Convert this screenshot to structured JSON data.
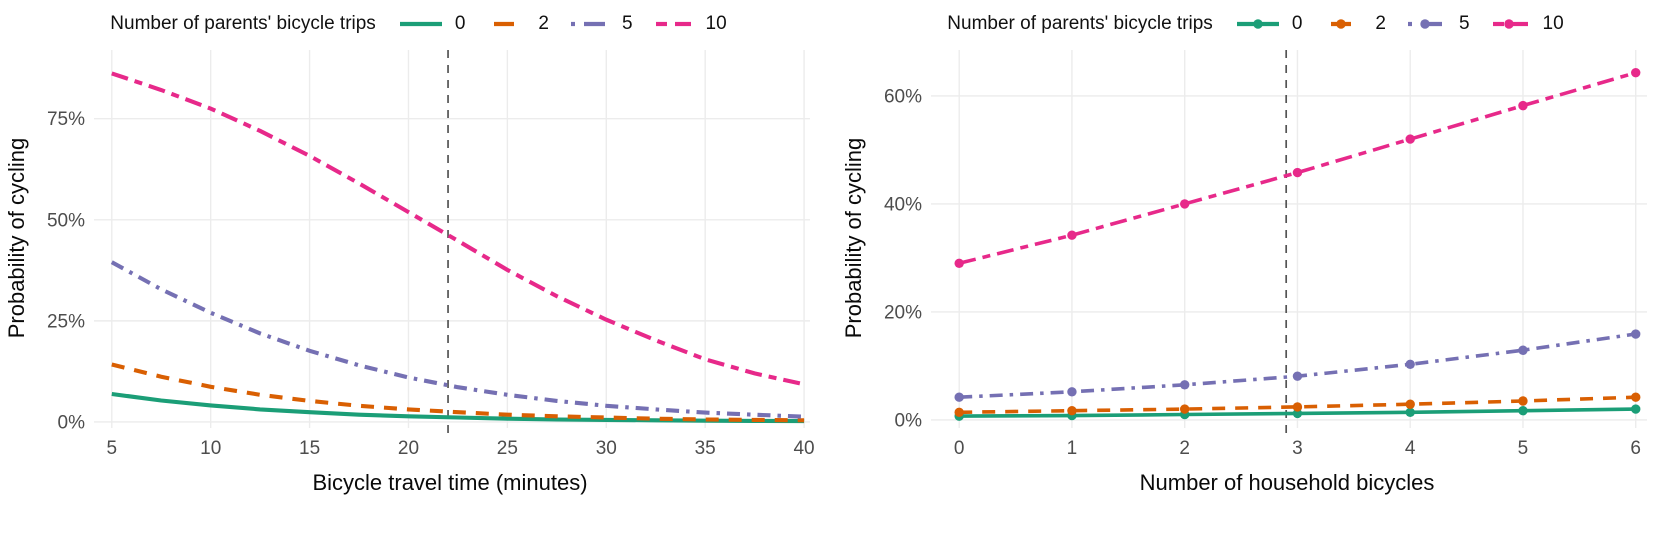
{
  "style": {
    "background": "#ffffff",
    "grid_color": "#ECECEC",
    "tick_label_color": "#4D4D4D",
    "axis_title_color": "#0A0A0A",
    "vline_color": "#545454",
    "series_colors": {
      "0": "#1B9E77",
      "2": "#D95F02",
      "5": "#7570B3",
      "10": "#E7298A"
    }
  },
  "chart_data": [
    {
      "type": "line",
      "title": "",
      "legend_title": "Number of parents' bicycle trips",
      "legend_position": "top",
      "xlabel": "Bicycle travel time (minutes)",
      "ylabel": "Probability of cycling",
      "x_ticks": [
        5,
        10,
        15,
        20,
        25,
        30,
        35,
        40
      ],
      "y_ticks": [
        {
          "label": "0%",
          "value": 0
        },
        {
          "label": "25%",
          "value": 25
        },
        {
          "label": "50%",
          "value": 50
        },
        {
          "label": "75%",
          "value": 75
        }
      ],
      "xlim": [
        4.1,
        40.3
      ],
      "ylim": [
        -1.5,
        92
      ],
      "grid": true,
      "markers": false,
      "vline": {
        "x": 22,
        "style": "dashed"
      },
      "x": [
        5,
        7.5,
        10,
        12.5,
        15,
        17.5,
        20,
        22.5,
        25,
        27.5,
        30,
        32.5,
        35,
        37.5,
        40
      ],
      "series": [
        {
          "name": "0",
          "color": "#1B9E77",
          "linetype": "solid",
          "values": [
            6.9,
            5.3,
            4.1,
            3.1,
            2.4,
            1.8,
            1.4,
            1.1,
            0.8,
            0.6,
            0.5,
            0.4,
            0.3,
            0.25,
            0.2
          ]
        },
        {
          "name": "2",
          "color": "#D95F02",
          "linetype": "dashed",
          "values": [
            14.2,
            11.2,
            8.7,
            6.7,
            5.2,
            4.0,
            3.1,
            2.4,
            1.8,
            1.4,
            1.1,
            0.8,
            0.6,
            0.5,
            0.4
          ]
        },
        {
          "name": "5",
          "color": "#7570B3",
          "linetype": "dashdot",
          "values": [
            39.5,
            32.8,
            27.0,
            21.9,
            17.6,
            14.0,
            11.0,
            8.6,
            6.7,
            5.2,
            4.0,
            3.1,
            2.3,
            1.8,
            1.3
          ]
        },
        {
          "name": "10",
          "color": "#E7298A",
          "linetype": "twodash",
          "values": [
            86.2,
            82.1,
            77.5,
            72.0,
            65.8,
            59.0,
            51.9,
            44.8,
            37.6,
            31.1,
            25.3,
            20.2,
            15.5,
            12.0,
            9.3
          ]
        }
      ]
    },
    {
      "type": "line",
      "title": "",
      "legend_title": "Number of parents' bicycle trips",
      "legend_position": "top",
      "xlabel": "Number of household bicycles",
      "ylabel": "Probability of cycling",
      "x_ticks": [
        0,
        1,
        2,
        3,
        4,
        5,
        6
      ],
      "y_ticks": [
        {
          "label": "0%",
          "value": 0
        },
        {
          "label": "20%",
          "value": 20
        },
        {
          "label": "40%",
          "value": 40
        },
        {
          "label": "60%",
          "value": 60
        }
      ],
      "xlim": [
        -0.25,
        6.1
      ],
      "ylim": [
        -1.5,
        68.5
      ],
      "grid": true,
      "markers": true,
      "vline": {
        "x": 2.9,
        "style": "dashed"
      },
      "x": [
        0,
        1,
        2,
        3,
        4,
        5,
        6
      ],
      "series": [
        {
          "name": "0",
          "color": "#1B9E77",
          "linetype": "solid",
          "values": [
            0.7,
            0.8,
            1.0,
            1.2,
            1.4,
            1.7,
            2.0
          ]
        },
        {
          "name": "2",
          "color": "#D95F02",
          "linetype": "dashed",
          "values": [
            1.4,
            1.7,
            2.0,
            2.4,
            2.9,
            3.5,
            4.2
          ]
        },
        {
          "name": "5",
          "color": "#7570B3",
          "linetype": "dashdot",
          "values": [
            4.2,
            5.2,
            6.5,
            8.1,
            10.3,
            12.9,
            15.9
          ]
        },
        {
          "name": "10",
          "color": "#E7298A",
          "linetype": "twodash",
          "values": [
            29.0,
            34.2,
            40.0,
            45.8,
            52.0,
            58.2,
            64.3
          ]
        }
      ]
    }
  ]
}
